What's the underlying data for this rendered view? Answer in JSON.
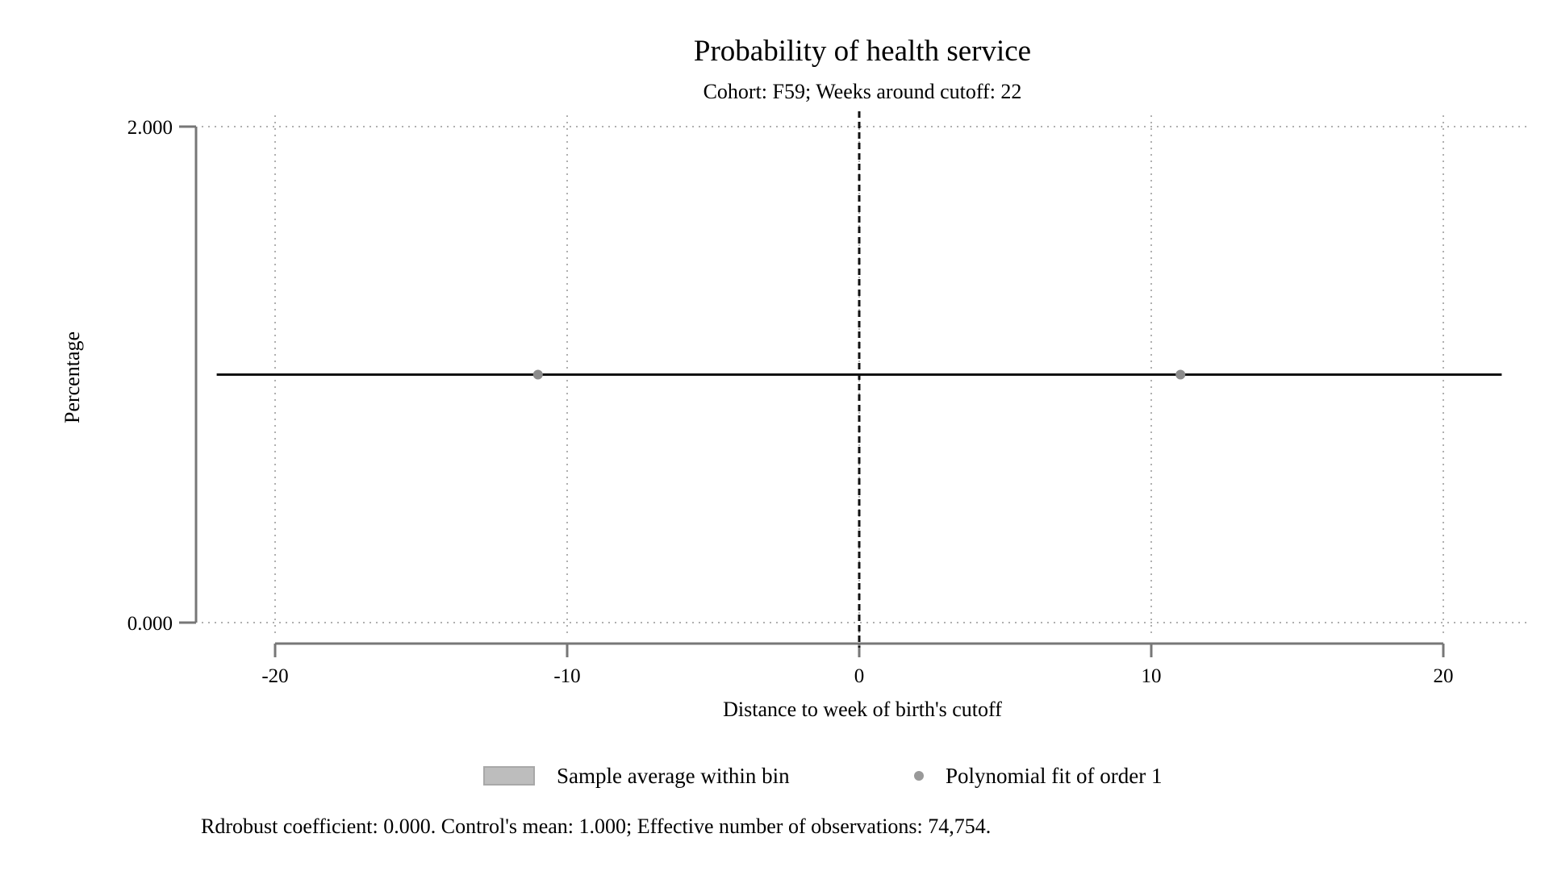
{
  "chart_data": {
    "type": "scatter",
    "title": "Probability of health service",
    "subtitle": "Cohort: F59; Weeks around cutoff: 22",
    "xlabel": "Distance to week of birth's cutoff",
    "ylabel": "Percentage",
    "xlim": [
      -22,
      22
    ],
    "ylim": [
      0,
      2
    ],
    "x_ticks": [
      -20,
      -10,
      0,
      10,
      20
    ],
    "x_tick_labels": [
      "-20",
      "-10",
      "0",
      "10",
      "20"
    ],
    "y_ticks": [
      0,
      2
    ],
    "y_tick_labels": [
      "0.000",
      "2.000"
    ],
    "grid": true,
    "cutoff_x": 0,
    "points": [
      {
        "x": -11,
        "y": 1.0
      },
      {
        "x": 11,
        "y": 1.0
      }
    ],
    "fit_line": {
      "x": [
        -22,
        22
      ],
      "y": [
        1.0,
        1.0
      ]
    },
    "legend": {
      "position": "bottom",
      "items": [
        {
          "label": "Sample average within bin",
          "symbol": "rect",
          "color": "#bdbdbd"
        },
        {
          "label": "Polynomial fit of order 1",
          "symbol": "dot",
          "color": "#999999"
        }
      ]
    },
    "note": "Rdrobust coefficient: 0.000. Control's mean: 1.000; Effective number of observations: 74,754.",
    "colors": {
      "line": "#111111",
      "point": "#8c8c8c",
      "grid": "#b0b0b0",
      "axis": "#777777"
    }
  }
}
